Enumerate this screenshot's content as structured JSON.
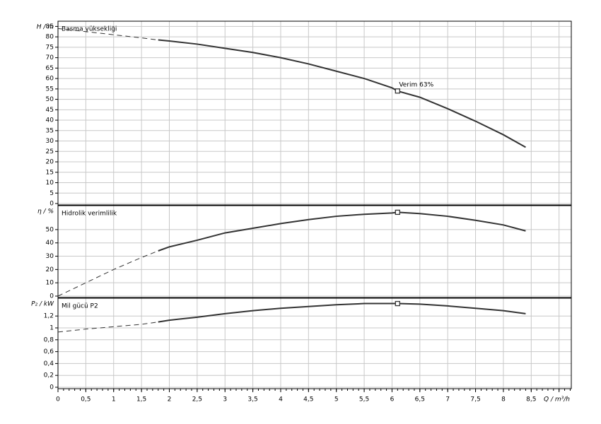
{
  "chart_data": [
    {
      "type": "line",
      "title": "Basma yüksekliği",
      "ylabel": "H / m",
      "x": [
        0,
        0.5,
        1,
        1.5,
        1.8,
        2,
        2.5,
        3,
        3.5,
        4,
        4.5,
        5,
        5.5,
        6,
        6.1,
        6.5,
        7,
        7.5,
        8,
        8.4
      ],
      "series": [
        {
          "style": "dashed",
          "color": "#333333",
          "values": [
            84,
            82.5,
            81,
            79.5,
            78.5,
            null,
            null,
            null,
            null,
            null,
            null,
            null,
            null,
            null,
            null,
            null,
            null,
            null,
            null,
            null
          ]
        },
        {
          "style": "solid",
          "color": "#333333",
          "values": [
            null,
            null,
            null,
            null,
            78.5,
            78,
            76.5,
            74.5,
            72.5,
            70,
            67,
            63.5,
            60,
            55.5,
            54,
            51,
            45.5,
            39.5,
            33,
            27
          ]
        },
        {
          "style": "marker",
          "color": "#333333",
          "values": [
            null,
            null,
            null,
            null,
            null,
            null,
            null,
            null,
            null,
            null,
            null,
            null,
            null,
            null,
            54,
            null,
            null,
            null,
            null,
            null
          ]
        }
      ],
      "annotation": "Verim  63%",
      "xlim": [
        0,
        9.22
      ],
      "xticks": [
        0,
        0.5,
        1,
        1.5,
        2,
        2.5,
        3,
        3.5,
        4,
        4.5,
        5,
        5.5,
        6,
        6.5,
        7,
        7.5,
        8,
        8.5,
        9
      ],
      "x_tick_labels": false,
      "ylim": [
        0,
        87.5
      ],
      "yticks": [
        0,
        5,
        10,
        15,
        20,
        25,
        30,
        35,
        40,
        45,
        50,
        55,
        60,
        65,
        70,
        75,
        80,
        85
      ],
      "grid": true
    },
    {
      "type": "line",
      "title": "Hidrolik verimlilik",
      "ylabel": "η / %",
      "x": [
        0,
        0.5,
        1,
        1.5,
        1.8,
        2,
        2.5,
        3,
        3.5,
        4,
        4.5,
        5,
        5.5,
        6,
        6.1,
        6.5,
        7,
        7.5,
        8,
        8.4
      ],
      "series": [
        {
          "style": "dashed",
          "color": "#333333",
          "values": [
            0,
            10,
            20,
            29,
            34,
            null,
            null,
            null,
            null,
            null,
            null,
            null,
            null,
            null,
            null,
            null,
            null,
            null,
            null,
            null
          ]
        },
        {
          "style": "solid",
          "color": "#333333",
          "values": [
            null,
            null,
            null,
            null,
            34,
            37,
            42,
            47.5,
            51,
            54.5,
            57.5,
            60,
            61.5,
            62.5,
            63,
            62,
            60,
            57,
            53.5,
            49
          ]
        },
        {
          "style": "marker",
          "color": "#333333",
          "values": [
            null,
            null,
            null,
            null,
            null,
            null,
            null,
            null,
            null,
            null,
            null,
            null,
            null,
            null,
            63,
            null,
            null,
            null,
            null,
            null
          ]
        }
      ],
      "xlim": [
        0,
        9.22
      ],
      "xticks": [
        0,
        0.5,
        1,
        1.5,
        2,
        2.5,
        3,
        3.5,
        4,
        4.5,
        5,
        5.5,
        6,
        6.5,
        7,
        7.5,
        8,
        8.5,
        9
      ],
      "x_tick_labels": false,
      "ylim": [
        0,
        68
      ],
      "yticks": [
        0,
        10,
        20,
        30,
        40,
        50
      ],
      "grid": true
    },
    {
      "type": "line",
      "title": "Mil gücü P2",
      "ylabel": "P₂ / kW",
      "xlabel": "Q / m³/h",
      "x": [
        0,
        0.5,
        1,
        1.5,
        1.8,
        2,
        2.5,
        3,
        3.5,
        4,
        4.5,
        5,
        5.5,
        6,
        6.1,
        6.5,
        7,
        7.5,
        8,
        8.4
      ],
      "series": [
        {
          "style": "dashed",
          "color": "#333333",
          "values": [
            0.93,
            0.98,
            1.02,
            1.06,
            1.1,
            null,
            null,
            null,
            null,
            null,
            null,
            null,
            null,
            null,
            null,
            null,
            null,
            null,
            null,
            null
          ]
        },
        {
          "style": "solid",
          "color": "#333333",
          "values": [
            null,
            null,
            null,
            null,
            1.1,
            1.13,
            1.18,
            1.24,
            1.29,
            1.33,
            1.36,
            1.39,
            1.41,
            1.41,
            1.41,
            1.4,
            1.37,
            1.33,
            1.29,
            1.24
          ]
        },
        {
          "style": "marker",
          "color": "#333333",
          "values": [
            null,
            null,
            null,
            null,
            null,
            null,
            null,
            null,
            null,
            null,
            null,
            null,
            null,
            null,
            1.41,
            null,
            null,
            null,
            null,
            null
          ]
        }
      ],
      "xlim": [
        0,
        9.22
      ],
      "xticks": [
        0,
        {
          "value": 0.5,
          "label": "0,5"
        },
        1,
        {
          "value": 1.5,
          "label": "1,5"
        },
        2,
        {
          "value": 2.5,
          "label": "2,5"
        },
        3,
        {
          "value": 3.5,
          "label": "3,5"
        },
        4,
        {
          "value": 4.5,
          "label": "4,5"
        },
        5,
        {
          "value": 5.5,
          "label": "5,5"
        },
        6,
        {
          "value": 6.5,
          "label": "6,5"
        },
        7,
        {
          "value": 7.5,
          "label": "7,5"
        },
        8,
        {
          "value": 8.5,
          "label": "8,5"
        },
        {
          "value": 9,
          "label": null
        }
      ],
      "x_tick_labels": true,
      "ylim": [
        0,
        1.5
      ],
      "yticks": [
        0,
        {
          "value": 0.2,
          "label": "0,2"
        },
        {
          "value": 0.4,
          "label": "0,4"
        },
        {
          "value": 0.6,
          "label": "0,6"
        },
        {
          "value": 0.8,
          "label": "0,8"
        },
        1,
        {
          "value": 1.2,
          "label": "1,2"
        }
      ],
      "grid": true
    }
  ]
}
